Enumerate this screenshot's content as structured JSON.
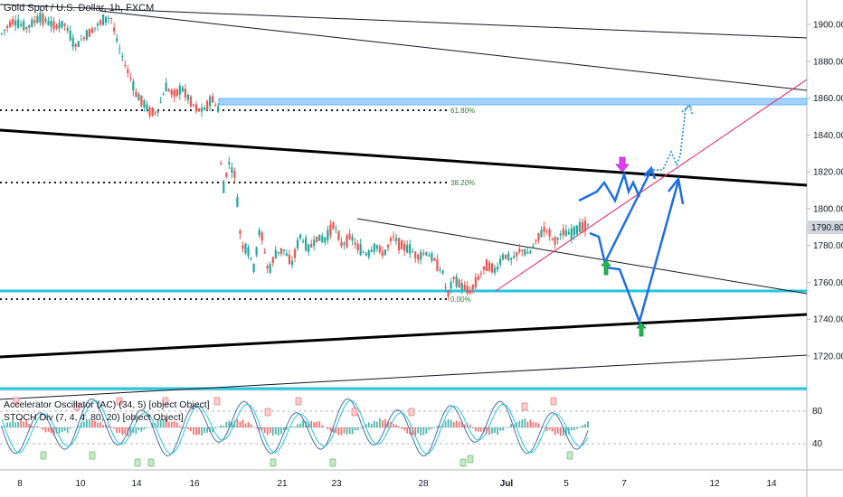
{
  "header": {
    "title": "Gold Spot / U.S. Dollar, 1h, FXCM"
  },
  "indicators": {
    "ac_label": "Accelerator Oscillator (AC) (34, 5) [object Object]",
    "stoch_label": "STOCH Div (7, 4, 4, 80, 20) [object Object]",
    "ticks": [
      "80",
      "40"
    ]
  },
  "chart_data": {
    "type": "candlestick",
    "symbol": "Gold Spot / U.S. Dollar",
    "timeframe": "1h",
    "source": "FXCM",
    "y_ticks": [
      "1900.00",
      "1880.00",
      "1860.00",
      "1840.00",
      "1820.00",
      "1800.00",
      "1780.00",
      "1760.00",
      "1740.00",
      "1720.00"
    ],
    "ylim": [
      1703,
      1908
    ],
    "current_price": "1790.80",
    "x_ticks": [
      "8",
      "10",
      "14",
      "16",
      "21",
      "23",
      "28",
      "Jul",
      "5",
      "7",
      "12",
      "14"
    ],
    "fib_levels": [
      {
        "label": "61.80%",
        "price": 1853
      },
      {
        "label": "38.20%",
        "price": 1813
      },
      {
        "label": "0.00%",
        "price": 1750
      }
    ],
    "price_path": [
      [
        8,
        1895
      ],
      [
        8.5,
        1902
      ],
      [
        9.2,
        1898
      ],
      [
        9.8,
        1904
      ],
      [
        10.5,
        1899
      ],
      [
        11,
        1900
      ],
      [
        11.5,
        1888
      ],
      [
        12,
        1894
      ],
      [
        12.8,
        1902
      ],
      [
        13.2,
        1904
      ],
      [
        13.5,
        1890
      ],
      [
        13.8,
        1880
      ],
      [
        14.1,
        1872
      ],
      [
        14.4,
        1862
      ],
      [
        14.7,
        1858
      ],
      [
        15,
        1853
      ],
      [
        15.4,
        1852
      ],
      [
        15.8,
        1866
      ],
      [
        16.2,
        1862
      ],
      [
        16.6,
        1865
      ],
      [
        17,
        1858
      ],
      [
        17.3,
        1854
      ],
      [
        17.6,
        1853
      ],
      [
        18,
        1860
      ],
      [
        18.3,
        1854
      ],
      [
        18.5,
        1808
      ],
      [
        18.8,
        1825
      ],
      [
        19.1,
        1818
      ],
      [
        19.4,
        1780
      ],
      [
        19.7,
        1778
      ],
      [
        20,
        1768
      ],
      [
        20.3,
        1790
      ],
      [
        20.7,
        1765
      ],
      [
        21,
        1775
      ],
      [
        21.4,
        1778
      ],
      [
        21.8,
        1770
      ],
      [
        22.2,
        1785
      ],
      [
        22.6,
        1778
      ],
      [
        23,
        1784
      ],
      [
        23.4,
        1783
      ],
      [
        23.8,
        1792
      ],
      [
        24.2,
        1780
      ],
      [
        24.6,
        1785
      ],
      [
        25,
        1778
      ],
      [
        25.4,
        1775
      ],
      [
        25.8,
        1780
      ],
      [
        26.2,
        1775
      ],
      [
        26.6,
        1785
      ],
      [
        27,
        1780
      ],
      [
        27.4,
        1778
      ],
      [
        27.8,
        1774
      ],
      [
        28.2,
        1776
      ],
      [
        28.6,
        1772
      ],
      [
        29,
        1765
      ],
      [
        29.2,
        1752
      ],
      [
        29.5,
        1762
      ],
      [
        29.9,
        1758
      ],
      [
        30.3,
        1755
      ],
      [
        30.7,
        1763
      ],
      [
        31.1,
        1770
      ],
      [
        31.5,
        1766
      ],
      [
        31.9,
        1775
      ],
      [
        32.3,
        1772
      ],
      [
        32.7,
        1778
      ],
      [
        33.1,
        1775
      ],
      [
        33.5,
        1784
      ],
      [
        33.9,
        1790
      ],
      [
        34.3,
        1782
      ],
      [
        34.7,
        1787
      ],
      [
        35.1,
        1786
      ],
      [
        35.5,
        1790
      ],
      [
        35.9,
        1791
      ]
    ],
    "horizontal_zones": [
      {
        "name": "resistance-zone",
        "price": 1857.5,
        "color": "#90caf9"
      },
      {
        "name": "support-line",
        "price": 1755,
        "color": "#26c6da"
      },
      {
        "name": "bottom-line",
        "price": 1705,
        "color": "#26c6da"
      }
    ],
    "colors": {
      "up": "#26a69a",
      "down": "#ef5350",
      "projection": "#1e6fe0",
      "trend_pink": "#e91e63",
      "buy_arrow": "#1db954",
      "sell_arrow": "#e040fb"
    },
    "grid": false
  }
}
